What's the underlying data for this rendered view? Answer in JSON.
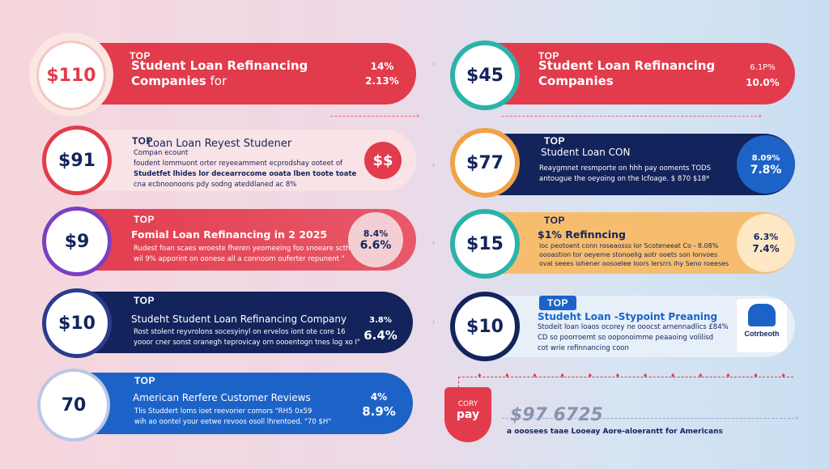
{
  "cards": [
    {
      "top": "TOP",
      "amount": "$110",
      "title": "Student Loan Refinancing",
      "title2": "Companies",
      "title_suffix": " for",
      "rate1": "14%",
      "rate2": "2.13%"
    },
    {
      "top": "TOP",
      "amount": "$45",
      "title": "Student Loan Refinancing",
      "title2": "Companies",
      "rate1": "6.1P%",
      "rate2": "10.0%"
    },
    {
      "top": "TOP",
      "amount": "$91",
      "title": "Loan Loan Reyest Studener",
      "subtitle": "Compan ecount",
      "desc1": "foudent lommuont orter reyeeamment ecprodshay ooteet of",
      "desc2": "Studetfet lhides lor decearrocome ooata lben toote toate",
      "desc3": "cna ecbnoonoons pdy sodng ateddlaned ac 8%"
    },
    {
      "top": "TOP",
      "amount": "$77",
      "title": "Student Loan CON",
      "desc1": "Reaygmnet resmporte on hhh pay ooments TODS",
      "desc2": "antougue the oeyoing on the lcfoage. $ 870 $18*",
      "rate1": "8.09%",
      "rate2": "7.8%"
    },
    {
      "top": "TOP",
      "amount": "$9",
      "title": "Fomial Loan Refinancing in 2 2025",
      "desc1": "Rudest foan scaes wroeste fheren yeomeeing foo snoeare scth",
      "desc2": "wil 9% apporint on oonese all a connoom ouferter repunent \"",
      "rate1": "8.4%",
      "rate2": "6.6%"
    },
    {
      "top": "TOP",
      "amount": "$15",
      "title": "$1% Refinncing",
      "desc1": "loc peotoent conn roseaosss lor Scoteneeat Co - 8.08%",
      "desc2": "oooastion tor oeyeme stonoelig aotr ooets son lonvoes",
      "desc3": "oval seees iohener oosoelee loors lersrrs ihy Seno roeeses",
      "rate1": "6.3%",
      "rate2": "7.4%"
    },
    {
      "top": "TOP",
      "amount": "$10",
      "title": "Studeht Student Loan Refinancing Company",
      "desc1": "Rost stolent reyvrolons socesyinyl on ervelos iont ote core 16",
      "desc2": "yooor cner sonst oranegh teprovicay orn oooentogn tnes log xo I\"",
      "rate1": "3.8%",
      "rate2": "6.4%"
    },
    {
      "top": "TOP",
      "amount": "$10",
      "title": "Studeht Loan -Stypoint Preaning",
      "desc1": "Stodeit loan loaos ocorey ne ooocst arnennadlics £84%",
      "desc2": "CD so poorroemt so ooponoimme peaaoing volilisd",
      "desc3": "cot wrie refinnancing coon",
      "logo": "Cotrbeoth"
    },
    {
      "top": "TOP",
      "amount": "70",
      "title": "American Rerfere Customer Reviews",
      "desc1": "Tlis Studdert loms ioet reevorier comors \"RH5 0x59",
      "desc2": "wih ao oontel your eetwe revoos osoll lhrentoed, \"70 $H\"",
      "rate1": "4%",
      "rate2": "8.9%"
    }
  ],
  "shield": {
    "line1": "CORY",
    "line2": "pay"
  },
  "bottom_amount": "$97 6725",
  "bottom_caption": "a ooosees taae Looeay Aore-aloerantt for Americans",
  "colors": {
    "red": "#e23b4c",
    "navy": "#13245c",
    "blue": "#1d63c7",
    "orange": "#f6bd6e",
    "pink": "#f9e3e6",
    "lightblue": "#e7eff9"
  }
}
